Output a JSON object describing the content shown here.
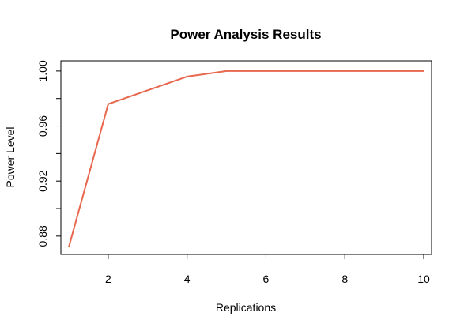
{
  "chart_data": {
    "type": "line",
    "title": "Power Analysis Results",
    "xlabel": "Replications",
    "ylabel": "Power Level",
    "xlim": [
      0.8,
      10.2
    ],
    "ylim": [
      0.8667,
      1.0074
    ],
    "x_ticks": [
      2,
      4,
      6,
      8,
      10
    ],
    "x_tick_labels": [
      "2",
      "4",
      "6",
      "8",
      "10"
    ],
    "y_ticks": [
      0.88,
      0.9,
      0.92,
      0.94,
      0.96,
      0.98,
      1.0
    ],
    "y_tick_labels": [
      "0.88",
      "",
      "0.92",
      "",
      "0.96",
      "",
      "1.00"
    ],
    "grid": false,
    "legend": "none",
    "series": [
      {
        "color": "#e8674e",
        "x": [
          1,
          2,
          3,
          4,
          5,
          6,
          7,
          8,
          9,
          10
        ],
        "y": [
          0.872,
          0.976,
          0.986,
          0.996,
          1.0,
          1.0,
          1.0,
          1.0,
          1.0,
          1.0
        ]
      }
    ]
  }
}
